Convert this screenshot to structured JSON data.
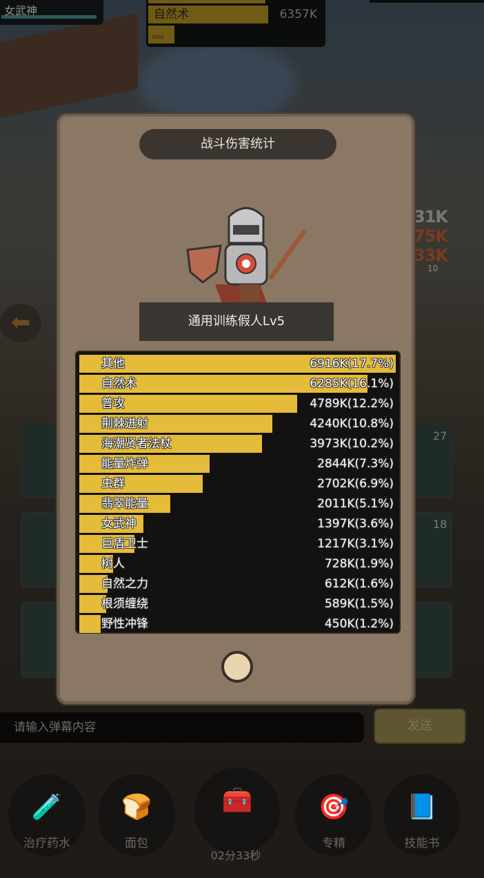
{
  "hud": {
    "player_name": "女武神",
    "top_skill_name": "自然术",
    "top_skill_value": "6357K",
    "small_bar_text": "ooo",
    "side_damage": [
      "31K",
      "75K",
      "33K"
    ],
    "side_level": "10",
    "slot_counts": [
      "27",
      "18"
    ]
  },
  "panel": {
    "title": "战斗伤害统计",
    "target_name": "通用训练假人Lv5",
    "rows": [
      {
        "label": "其他",
        "value": "6916K(17.7%)",
        "pct": 17.7
      },
      {
        "label": "自然术",
        "value": "6285K(16.1%)",
        "pct": 16.1
      },
      {
        "label": "普攻",
        "value": "4789K(12.2%)",
        "pct": 12.2
      },
      {
        "label": "荆棘迸射",
        "value": "4240K(10.8%)",
        "pct": 10.8
      },
      {
        "label": "海潮贤者法杖",
        "value": "3973K(10.2%)",
        "pct": 10.2
      },
      {
        "label": "能量炸弹",
        "value": "2844K(7.3%)",
        "pct": 7.3
      },
      {
        "label": "虫群",
        "value": "2702K(6.9%)",
        "pct": 6.9
      },
      {
        "label": "翡翠能量",
        "value": "2011K(5.1%)",
        "pct": 5.1
      },
      {
        "label": "女武神",
        "value": "1397K(3.6%)",
        "pct": 3.6
      },
      {
        "label": "巨盾卫士",
        "value": "1217K(3.1%)",
        "pct": 3.1
      },
      {
        "label": "树人",
        "value": "728K(1.9%)",
        "pct": 1.9
      },
      {
        "label": "自然之力",
        "value": "612K(1.6%)",
        "pct": 1.6
      },
      {
        "label": "根须缠绕",
        "value": "589K(1.5%)",
        "pct": 1.5
      },
      {
        "label": "野性冲锋",
        "value": "450K(1.2%)",
        "pct": 1.2
      }
    ],
    "bar_color": "#e5bb3a"
  },
  "chat": {
    "placeholder": "请输入弹幕内容",
    "send_label": "发送"
  },
  "bottom": {
    "items": [
      {
        "label": "治疗药水",
        "icon": "potion-icon"
      },
      {
        "label": "面包",
        "icon": "bread-icon"
      },
      {
        "label": "专精",
        "icon": "target-icon"
      },
      {
        "label": "技能书",
        "icon": "skill-book-icon"
      }
    ],
    "chest_timer": "02分33秒"
  }
}
